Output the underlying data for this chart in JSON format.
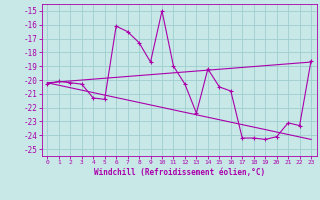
{
  "xlabel": "Windchill (Refroidissement éolien,°C)",
  "xlim": [
    -0.5,
    23.5
  ],
  "ylim": [
    -25.5,
    -14.5
  ],
  "xticks": [
    0,
    1,
    2,
    3,
    4,
    5,
    6,
    7,
    8,
    9,
    10,
    11,
    12,
    13,
    14,
    15,
    16,
    17,
    18,
    19,
    20,
    21,
    22,
    23
  ],
  "yticks": [
    -25,
    -24,
    -23,
    -22,
    -21,
    -20,
    -19,
    -18,
    -17,
    -16,
    -15
  ],
  "bg_color": "#c8e8e8",
  "grid_color": "#9ecece",
  "line_color": "#aa00aa",
  "line1_x": [
    0,
    1,
    2,
    3,
    4,
    5,
    6,
    7,
    8,
    9,
    10,
    11,
    12,
    13,
    14,
    15,
    16,
    17,
    18,
    19,
    20,
    21,
    22,
    23
  ],
  "line1_y": [
    -20.3,
    -20.1,
    -20.2,
    -20.3,
    -21.3,
    -21.4,
    -16.1,
    -16.5,
    -17.3,
    -18.7,
    -15.0,
    -19.0,
    -20.3,
    -22.4,
    -19.2,
    -20.5,
    -20.8,
    -24.2,
    -24.2,
    -24.3,
    -24.1,
    -23.1,
    -23.3,
    -18.6
  ],
  "line2_x": [
    0,
    23
  ],
  "line2_y": [
    -20.2,
    -24.3
  ],
  "line3_x": [
    0,
    23
  ],
  "line3_y": [
    -20.2,
    -18.7
  ]
}
